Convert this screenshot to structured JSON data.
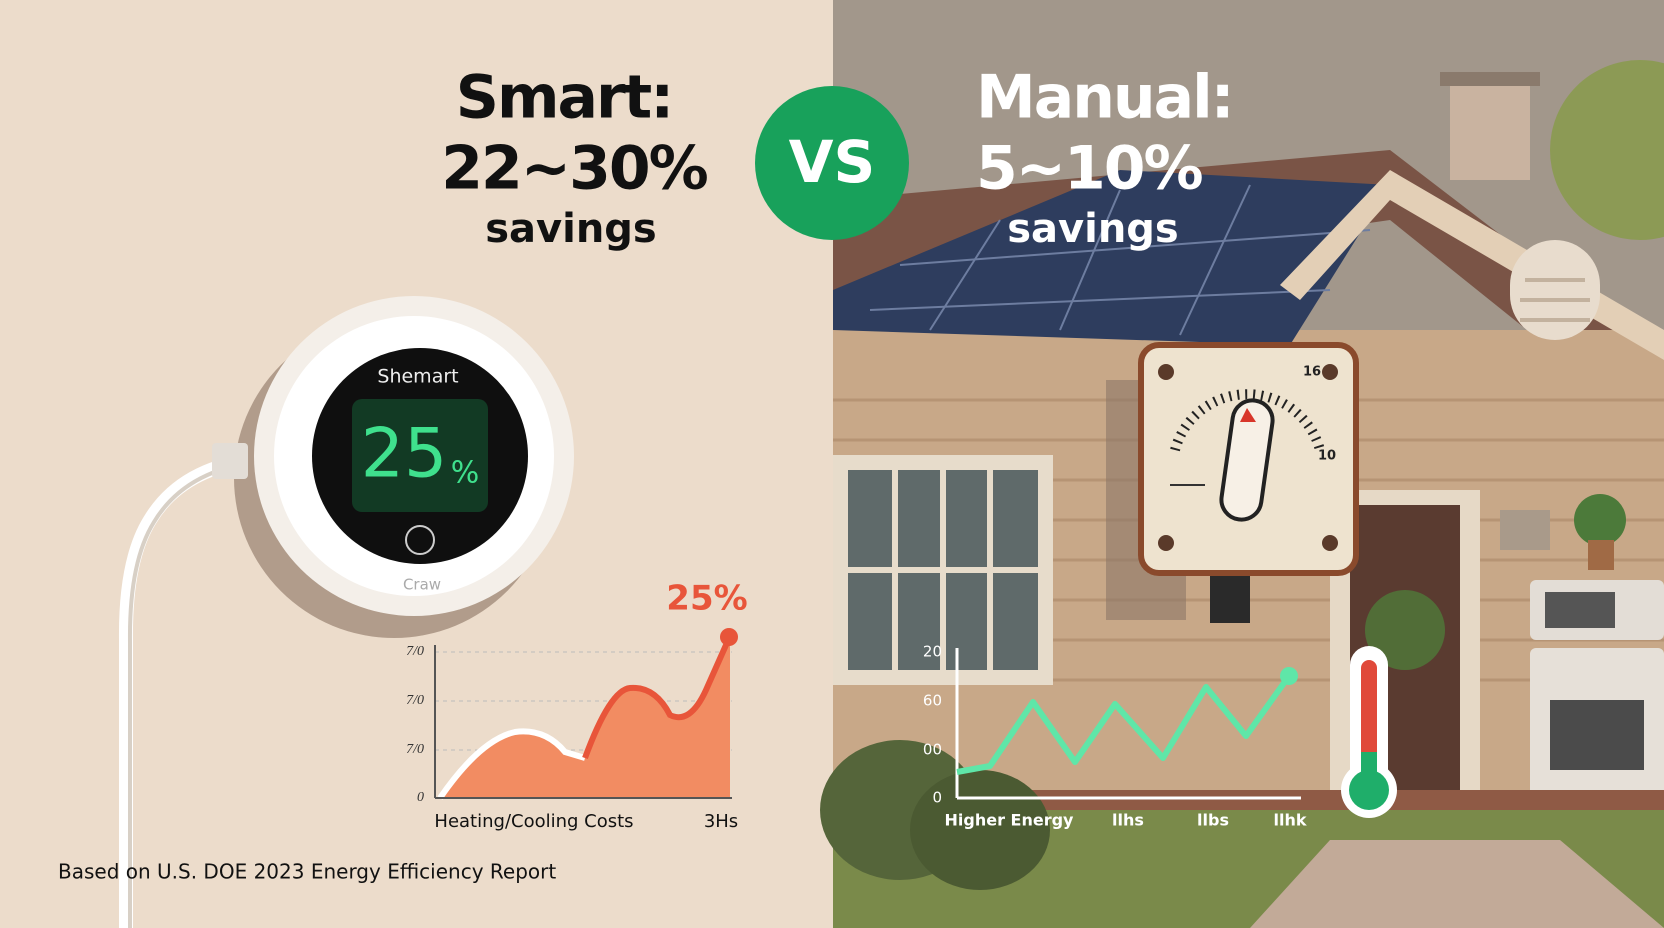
{
  "left": {
    "heading": [
      "Smart:",
      "22~30%",
      "savings"
    ],
    "thermostat": {
      "brand": "Shemart",
      "reading": "25",
      "unit": "%",
      "footer": "Craw"
    },
    "chart": {
      "callout": "25%",
      "y_labels": [
        "7/0",
        "7/0",
        "7/0",
        "0"
      ],
      "x_label": "Heating/Cooling Costs",
      "x_end_label": "3Hs"
    },
    "source": "Based on U.S. DOE 2023 Energy Efficiency Report"
  },
  "badge": "VS",
  "right": {
    "heading": [
      "Manual:",
      "5~10%",
      "savings"
    ],
    "dial_labels": [
      "16",
      "10"
    ],
    "chart": {
      "y_labels": [
        "20",
        "60",
        "00",
        "0"
      ],
      "x_labels": [
        "Higher Energy",
        "llhs",
        "llbs",
        "llhk"
      ]
    }
  }
}
